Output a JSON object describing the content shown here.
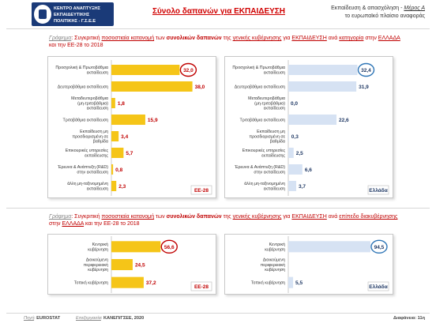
{
  "header": {
    "logo_lines": [
      "ΚΕΝΤΡΟ ΑΝΑΠΤΥΞΗΣ",
      "ΕΚΠΑΙΔΕΥΤΙΚΗΣ",
      "ΠΟΛΙΤΙΚΗΣ - Γ.Σ.Ε.Ε"
    ],
    "title": "Σύνολο δαπανών για ΕΚΠΑΙΔΕΥΣΗ",
    "section_line1": "Εκπαίδευση & απασχόληση - ",
    "section_part": "Μέρος Α",
    "section_line2": "το ευρωπαϊκό πλαίσιο αναφοράς"
  },
  "subhead1": {
    "label": "Γράφημα",
    "pre": ": Συγκριτική ",
    "u1": "ποσοστιαία κατανομή",
    "mid1": " των ",
    "b1": "συνολικών δαπανών",
    "mid2": " της ",
    "u2": "γενικής κυβέρνησης",
    "mid3": " για ",
    "u3": "ΕΚΠΑΙΔΕΥΣΗ",
    "mid4": " ανά ",
    "u4": "κατηγορία",
    "mid5": " στην ",
    "u5": "ΕΛΛΑΔΑ",
    "line2": "και την ΕΕ-28 το 2018"
  },
  "subhead2": {
    "label": "Γράφημα",
    "pre": ": Συγκριτική ",
    "u1": "ποσοστιαία κατανομή",
    "mid1": " των ",
    "b1": "συνολικών δαπανών",
    "mid2": " της ",
    "u2": "γενικής κυβέρνησης",
    "mid3": " για ",
    "u3": "ΕΚΠΑΙΔΕΥΣΗ",
    "mid4": " ανά ",
    "u4": "επίπεδο διακυβέρνησης",
    "line2a": "στην ",
    "u5": "ΕΛΛΑΔΑ",
    "line2b": " και την ΕΕ-28 το 2018"
  },
  "footer": {
    "source_label": "Πηγή",
    "source_value": "EUROSTAT",
    "processing_label": "Επεξεργασία",
    "processing_value": "ΚΑΝΕΠ/ΓΣΕΕ, 2020",
    "slide": "Διαφάνεια: 11η"
  },
  "colors": {
    "eu_bar": "#f5c518",
    "eu_label": "#c00000",
    "gr_bar": "#d6e2f3",
    "gr_label": "#1f3864",
    "circle_eu": "#c00000",
    "circle_gr": "#2e75b6"
  },
  "chart_data": [
    {
      "type": "bar",
      "orientation": "horizontal",
      "series": [
        {
          "name": "ΕΕ-28",
          "values": [
            32.0,
            38.0,
            1.8,
            15.9,
            3.4,
            5.7,
            0.8,
            2.3
          ]
        }
      ],
      "value_labels": [
        "32,0",
        "38,0",
        "1,8",
        "15,9",
        "3,4",
        "5,7",
        "0,8",
        "2,3"
      ],
      "categories": [
        "Προσχολική & Πρωτοβάθμια εκπαίδευση",
        "Δευτεροβάθμια εκπαίδευση",
        "Μεταδευτεροβάθμια (μη-τριτοβάθμια) εκπαίδευση",
        "Τριτοβάθμια εκπαίδευση",
        "Εκπαίδευση μη προσδιορισμένη σε βαθμίδα",
        "Επικουρικές υπηρεσίες εκπαίδευσης",
        "Έρευνα & Ανάπτυξη (R&D) στην εκπαίδευση",
        "άλλη μη-ταξινομημένη εκπαίδευση"
      ],
      "tag": "ΕΕ-28",
      "highlight_index": 0,
      "xlim": [
        0,
        40
      ]
    },
    {
      "type": "bar",
      "orientation": "horizontal",
      "series": [
        {
          "name": "Ελλάδα",
          "values": [
            32.4,
            31.9,
            0.0,
            22.6,
            0.3,
            2.5,
            6.6,
            3.7
          ]
        }
      ],
      "value_labels": [
        "32,4",
        "31,9",
        "0,0",
        "22,6",
        "0,3",
        "2,5",
        "6,6",
        "3,7"
      ],
      "categories": [
        "Προσχολική & Πρωτοβάθμια εκπαίδευση",
        "Δευτεροβάθμια εκπαίδευση",
        "Μεταδευτεροβάθμια (μη-τριτοβάθμια) εκπαίδευση",
        "Τριτοβάθμια εκπαίδευση",
        "Εκπαίδευση μη προσδιορισμένη σε βαθμίδα",
        "Επικουρικές υπηρεσίες εκπαίδευσης",
        "Έρευνα & Ανάπτυξη (R&D) στην εκπαίδευση",
        "άλλη μη-ταξινομημένη εκπαίδευση"
      ],
      "tag": "Ελλάδα",
      "highlight_index": 0,
      "xlim": [
        0,
        40
      ]
    },
    {
      "type": "bar",
      "orientation": "horizontal",
      "series": [
        {
          "name": "ΕΕ-28",
          "values": [
            56.6,
            24.5,
            37.2
          ]
        }
      ],
      "value_labels": [
        "56,6",
        "24,5",
        "37,2"
      ],
      "categories": [
        "Κεντρική κυβέρνηση",
        "Διοικούμενη περιφερειακή κυβέρνηση",
        "Τοπική κυβέρνηση"
      ],
      "tag": "ΕΕ-28",
      "highlight_index": 0,
      "xlim": [
        0,
        100
      ]
    },
    {
      "type": "bar",
      "orientation": "horizontal",
      "series": [
        {
          "name": "Ελλάδα",
          "values": [
            94.5,
            0.0,
            5.5
          ]
        }
      ],
      "value_labels": [
        "94,5",
        "",
        "5,5"
      ],
      "categories": [
        "Κεντρική κυβέρνηση",
        "Διοικούμενη περιφερειακή κυβέρνηση",
        "Τοπική κυβέρνηση"
      ],
      "tag": "Ελλάδα",
      "highlight_index": 0,
      "xlim": [
        0,
        100
      ]
    }
  ]
}
